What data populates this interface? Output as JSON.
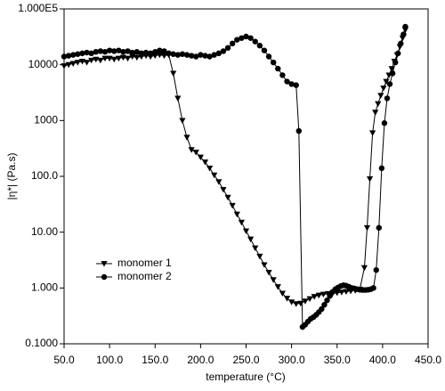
{
  "chart_data": {
    "type": "line",
    "x_label": "temperature (°C)",
    "y_label": "|η*| (Pa.s)",
    "log_y": true,
    "xlim": [
      50,
      450
    ],
    "ylim": [
      0.1,
      100000
    ],
    "xticks": [
      {
        "value": 50,
        "label": "50.0"
      },
      {
        "value": 100,
        "label": "100.0"
      },
      {
        "value": 150,
        "label": "150.0"
      },
      {
        "value": 200,
        "label": "200.0"
      },
      {
        "value": 250,
        "label": "250.0"
      },
      {
        "value": 300,
        "label": "300.0"
      },
      {
        "value": 350,
        "label": "350.0"
      },
      {
        "value": 400,
        "label": "400.0"
      },
      {
        "value": 450,
        "label": "450.0"
      }
    ],
    "yticks": [
      {
        "value": 0.1,
        "label": "0.1000"
      },
      {
        "value": 1,
        "label": "1.000"
      },
      {
        "value": 10,
        "label": "10.00"
      },
      {
        "value": 100,
        "label": "100.0"
      },
      1000,
      10000,
      {
        "value": 100000,
        "label": "1.000E5"
      }
    ],
    "series": [
      {
        "name": "monomer 1",
        "color": "#000000",
        "marker": "triangle-down",
        "x": [
          50,
          55,
          60,
          65,
          70,
          75,
          80,
          85,
          90,
          95,
          100,
          105,
          110,
          115,
          120,
          125,
          130,
          135,
          140,
          145,
          150,
          155,
          160,
          165,
          170,
          175,
          180,
          185,
          190,
          195,
          200,
          205,
          210,
          215,
          220,
          225,
          230,
          235,
          240,
          245,
          250,
          255,
          260,
          265,
          270,
          275,
          280,
          285,
          290,
          295,
          300,
          305,
          310,
          315,
          320,
          325,
          330,
          335,
          340,
          345,
          350,
          355,
          360,
          365,
          370,
          375,
          380,
          383,
          386,
          389,
          392,
          395,
          398,
          401,
          404,
          407,
          410,
          413,
          416,
          419,
          422,
          425
        ],
        "values": [
          9500,
          10000,
          10500,
          11000,
          11500,
          11000,
          12000,
          12500,
          12000,
          13000,
          13000,
          12500,
          13000,
          13500,
          13000,
          14000,
          13500,
          14000,
          14500,
          14000,
          14500,
          15000,
          14500,
          15000,
          7000,
          2500,
          1000,
          500,
          300,
          270,
          220,
          180,
          140,
          105,
          80,
          58,
          42,
          30,
          21,
          15,
          10.5,
          7.5,
          5.2,
          3.7,
          2.6,
          1.9,
          1.4,
          1.05,
          0.8,
          0.65,
          0.56,
          0.52,
          0.53,
          0.58,
          0.64,
          0.7,
          0.74,
          0.77,
          0.79,
          0.8,
          0.82,
          0.84,
          0.86,
          0.88,
          0.9,
          0.95,
          2.3,
          12,
          90,
          600,
          1400,
          2000,
          2800,
          3800,
          5000,
          6500,
          8500,
          11500,
          15000,
          21000,
          30000,
          42000
        ]
      },
      {
        "name": "monomer 2",
        "color": "#000000",
        "marker": "circle",
        "x": [
          50,
          55,
          60,
          65,
          70,
          75,
          80,
          85,
          90,
          95,
          100,
          105,
          110,
          115,
          120,
          125,
          130,
          135,
          140,
          145,
          150,
          155,
          160,
          165,
          170,
          175,
          180,
          185,
          190,
          195,
          200,
          205,
          210,
          215,
          220,
          225,
          230,
          235,
          240,
          245,
          250,
          255,
          260,
          265,
          270,
          275,
          280,
          285,
          290,
          295,
          300,
          305,
          308,
          312,
          315,
          318,
          321,
          324,
          327,
          330,
          333,
          336,
          339,
          342,
          345,
          348,
          351,
          354,
          357,
          360,
          363,
          366,
          369,
          372,
          375,
          378,
          381,
          384,
          387,
          390,
          393,
          396,
          399,
          402,
          405,
          408,
          411,
          414,
          417,
          420,
          423,
          425
        ],
        "values": [
          14000,
          14500,
          15000,
          15500,
          16000,
          16500,
          16000,
          17000,
          17500,
          17000,
          18000,
          17500,
          18000,
          17000,
          17500,
          16500,
          17000,
          16000,
          16500,
          16000,
          17000,
          18000,
          17500,
          16000,
          15500,
          15000,
          15500,
          15000,
          14500,
          14000,
          15000,
          14500,
          14000,
          15000,
          16000,
          17500,
          20000,
          24000,
          28000,
          30000,
          32000,
          30000,
          26000,
          22000,
          18000,
          14000,
          11000,
          8500,
          6500,
          5000,
          4500,
          4300,
          650,
          0.2,
          0.22,
          0.25,
          0.28,
          0.3,
          0.33,
          0.37,
          0.42,
          0.5,
          0.6,
          0.72,
          0.85,
          0.95,
          1.02,
          1.08,
          1.12,
          1.1,
          1.05,
          1.0,
          0.98,
          0.95,
          0.93,
          0.92,
          0.92,
          0.93,
          0.95,
          1.0,
          2.1,
          12,
          140,
          900,
          2500,
          4500,
          7000,
          11000,
          16000,
          24000,
          35000,
          48000
        ]
      }
    ]
  }
}
